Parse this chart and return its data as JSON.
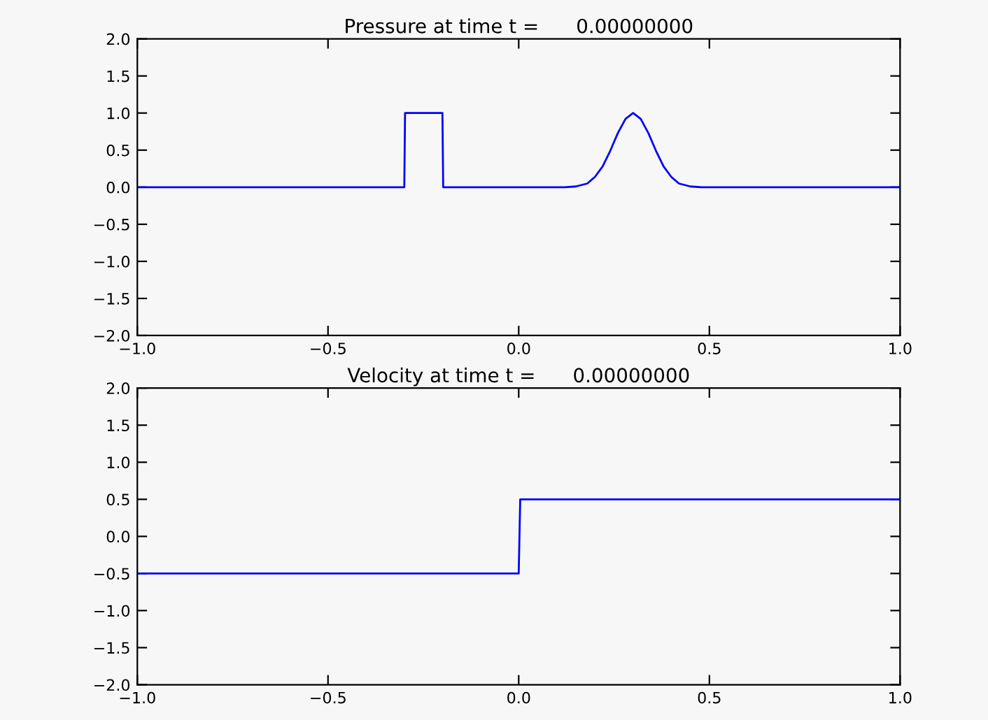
{
  "chart_data": [
    {
      "type": "line",
      "title": "Pressure at time t =      0.00000000",
      "xlim": [
        -1.0,
        1.0
      ],
      "ylim": [
        -2.0,
        2.0
      ],
      "xticks": [
        {
          "value": -1.0,
          "label": "−1.0"
        },
        {
          "value": -0.5,
          "label": "−0.5"
        },
        {
          "value": 0.0,
          "label": "0.0"
        },
        {
          "value": 0.5,
          "label": "0.5"
        },
        {
          "value": 1.0,
          "label": "1.0"
        }
      ],
      "yticks": [
        {
          "value": -2.0,
          "label": "−2.0"
        },
        {
          "value": -1.5,
          "label": "−1.5"
        },
        {
          "value": -1.0,
          "label": "−1.0"
        },
        {
          "value": -0.5,
          "label": "−0.5"
        },
        {
          "value": 0.0,
          "label": "0.0"
        },
        {
          "value": 0.5,
          "label": "0.5"
        },
        {
          "value": 1.0,
          "label": "1.0"
        },
        {
          "value": 1.5,
          "label": "1.5"
        },
        {
          "value": 2.0,
          "label": "2.0"
        }
      ],
      "grid": false,
      "line_style": "solid",
      "series": [
        {
          "color": "#0000ff",
          "x": [
            -1.0,
            -0.3,
            -0.298,
            -0.2,
            -0.198,
            0.12,
            0.15,
            0.18,
            0.2,
            0.22,
            0.24,
            0.26,
            0.28,
            0.3,
            0.32,
            0.34,
            0.36,
            0.38,
            0.4,
            0.42,
            0.45,
            0.48,
            1.0
          ],
          "values": [
            0,
            0,
            1,
            1,
            0,
            0,
            0.01,
            0.05,
            0.14,
            0.28,
            0.49,
            0.73,
            0.92,
            1.0,
            0.92,
            0.73,
            0.49,
            0.28,
            0.14,
            0.05,
            0.01,
            0,
            0
          ]
        }
      ]
    },
    {
      "type": "line",
      "title": "Velocity at time t =      0.00000000",
      "xlim": [
        -1.0,
        1.0
      ],
      "ylim": [
        -2.0,
        2.0
      ],
      "xticks": [
        {
          "value": -1.0,
          "label": "−1.0"
        },
        {
          "value": -0.5,
          "label": "−0.5"
        },
        {
          "value": 0.0,
          "label": "0.0"
        },
        {
          "value": 0.5,
          "label": "0.5"
        },
        {
          "value": 1.0,
          "label": "1.0"
        }
      ],
      "yticks": [
        {
          "value": -2.0,
          "label": "−2.0"
        },
        {
          "value": -1.5,
          "label": "−1.5"
        },
        {
          "value": -1.0,
          "label": "−1.0"
        },
        {
          "value": -0.5,
          "label": "−0.5"
        },
        {
          "value": 0.0,
          "label": "0.0"
        },
        {
          "value": 0.5,
          "label": "0.5"
        },
        {
          "value": 1.0,
          "label": "1.0"
        },
        {
          "value": 1.5,
          "label": "1.5"
        },
        {
          "value": 2.0,
          "label": "2.0"
        }
      ],
      "grid": false,
      "line_style": "solid",
      "series": [
        {
          "color": "#0000ff",
          "x": [
            -1.0,
            0.0,
            0.004,
            1.0
          ],
          "values": [
            -0.5,
            -0.5,
            0.5,
            0.5
          ]
        }
      ]
    }
  ]
}
